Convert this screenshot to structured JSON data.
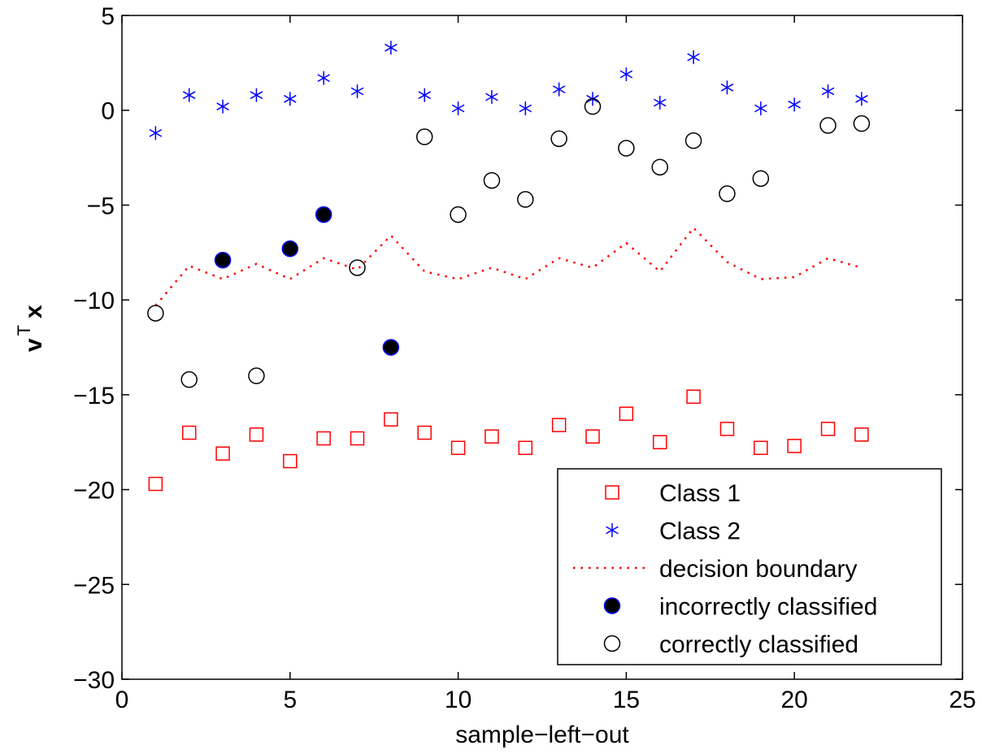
{
  "chart_data": {
    "type": "scatter",
    "title": "",
    "xlabel": "sample−left−out",
    "ylabel": {
      "main": "v",
      "sup": "T",
      "tail": "x"
    },
    "xlim": [
      0,
      25
    ],
    "ylim": [
      -30,
      5
    ],
    "xticks": [
      0,
      5,
      10,
      15,
      20,
      25
    ],
    "xtick_labels": [
      "0",
      "5",
      "10",
      "15",
      "20",
      "25"
    ],
    "yticks": [
      5,
      0,
      -5,
      -10,
      -15,
      -20,
      -25,
      -30
    ],
    "ytick_labels": [
      "5",
      "0",
      "−5",
      "−10",
      "−15",
      "−20",
      "−25",
      "−30"
    ],
    "grid": false,
    "legend_position": "bottom-right",
    "colors": {
      "class1": "#ff0000",
      "class2": "#0000ff",
      "boundary": "#ff0000",
      "marker": "#000000"
    },
    "series": [
      {
        "name": "Class 1",
        "marker": "square",
        "x": [
          1,
          2,
          3,
          4,
          5,
          6,
          7,
          8,
          9,
          10,
          11,
          12,
          13,
          14,
          15,
          16,
          17,
          18,
          19,
          20,
          21,
          22
        ],
        "y": [
          -19.7,
          -17.0,
          -18.1,
          -17.1,
          -18.5,
          -17.3,
          -17.3,
          -16.3,
          -17.0,
          -17.8,
          -17.2,
          -17.8,
          -16.6,
          -17.2,
          -16.0,
          -17.5,
          -15.1,
          -16.8,
          -17.8,
          -17.7,
          -16.8,
          -17.1
        ]
      },
      {
        "name": "Class 2",
        "marker": "asterisk",
        "x": [
          1,
          2,
          3,
          4,
          5,
          6,
          7,
          8,
          9,
          10,
          11,
          12,
          13,
          14,
          15,
          16,
          17,
          18,
          19,
          20,
          21,
          22
        ],
        "y": [
          -1.2,
          0.8,
          0.2,
          0.8,
          0.6,
          1.7,
          1.0,
          3.3,
          0.8,
          0.1,
          0.7,
          0.1,
          1.1,
          0.6,
          1.9,
          0.4,
          2.8,
          1.2,
          0.1,
          0.3,
          1.0,
          0.6
        ]
      },
      {
        "name": "decision boundary",
        "marker": "dotted-line",
        "x": [
          1,
          2,
          3,
          4,
          5,
          6,
          7,
          8,
          9,
          10,
          11,
          12,
          13,
          14,
          15,
          16,
          17,
          18,
          19,
          20,
          21,
          22
        ],
        "y": [
          -10.3,
          -8.2,
          -8.9,
          -8.1,
          -8.9,
          -7.8,
          -8.4,
          -6.6,
          -8.5,
          -8.9,
          -8.3,
          -8.9,
          -7.8,
          -8.3,
          -7.0,
          -8.5,
          -6.2,
          -8.0,
          -8.9,
          -8.8,
          -7.8,
          -8.3
        ]
      },
      {
        "name": "incorrectly classified",
        "marker": "filled-circle",
        "x": [
          3,
          5,
          6,
          8
        ],
        "y": [
          -7.9,
          -7.3,
          -5.5,
          -12.5
        ]
      },
      {
        "name": "correctly classified",
        "marker": "open-circle",
        "x": [
          1,
          2,
          4,
          7,
          9,
          10,
          11,
          12,
          13,
          14,
          15,
          16,
          17,
          18,
          19,
          21,
          22
        ],
        "y": [
          -10.7,
          -14.2,
          -14.0,
          -8.3,
          -1.4,
          -5.5,
          -3.7,
          -4.7,
          -1.5,
          0.2,
          -2.0,
          -3.0,
          -1.6,
          -4.4,
          -3.6,
          -0.8,
          -0.7
        ]
      }
    ]
  }
}
